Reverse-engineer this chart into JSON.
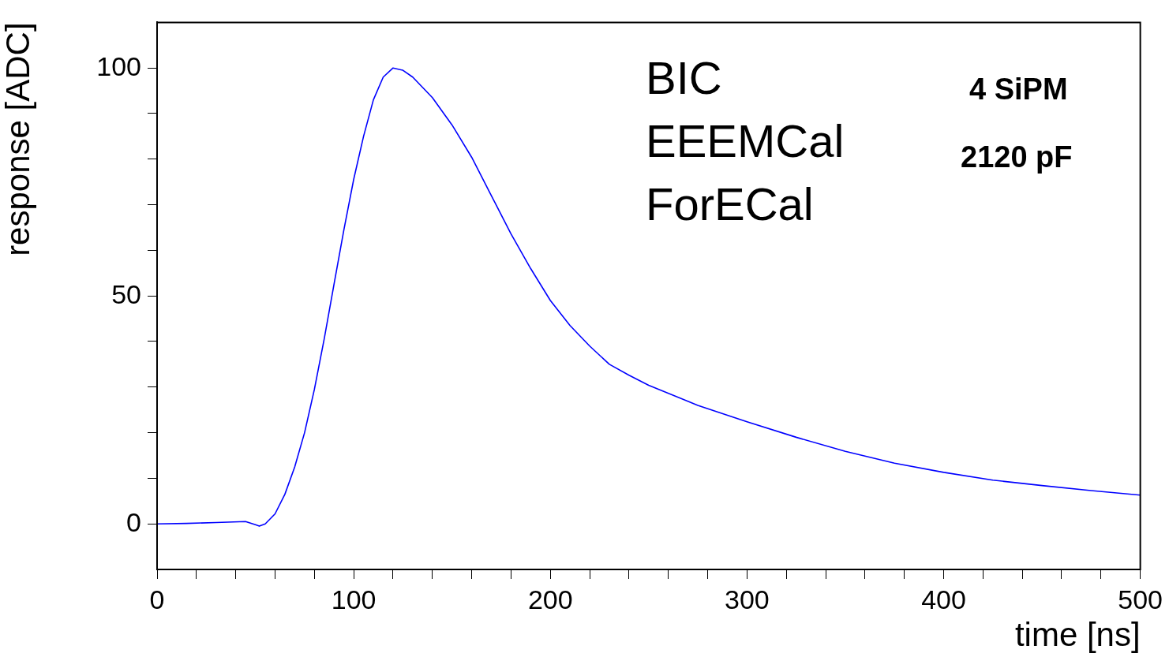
{
  "chart_data": {
    "type": "line",
    "xlabel": "time [ns]",
    "ylabel": "response [ADC]",
    "annotations": [
      "BIC",
      "EEEMCal",
      "ForECal",
      "4 SiPM",
      "2120 pF"
    ],
    "xlim": [
      0,
      500
    ],
    "ylim": [
      -10,
      110
    ],
    "xticks": [
      0,
      {
        "value": 20,
        "label": null
      },
      {
        "value": 40,
        "label": null
      },
      {
        "value": 60,
        "label": null
      },
      {
        "value": 80,
        "label": null
      },
      100,
      {
        "value": 120,
        "label": null
      },
      {
        "value": 140,
        "label": null
      },
      {
        "value": 160,
        "label": null
      },
      {
        "value": 180,
        "label": null
      },
      200,
      {
        "value": 220,
        "label": null
      },
      {
        "value": 240,
        "label": null
      },
      {
        "value": 260,
        "label": null
      },
      {
        "value": 280,
        "label": null
      },
      300,
      {
        "value": 320,
        "label": null
      },
      {
        "value": 340,
        "label": null
      },
      {
        "value": 360,
        "label": null
      },
      {
        "value": 380,
        "label": null
      },
      400,
      {
        "value": 420,
        "label": null
      },
      {
        "value": 440,
        "label": null
      },
      {
        "value": 460,
        "label": null
      },
      {
        "value": 480,
        "label": null
      },
      500
    ],
    "yticks": [
      0,
      {
        "value": 10,
        "label": null
      },
      {
        "value": 20,
        "label": null
      },
      {
        "value": 30,
        "label": null
      },
      {
        "value": 40,
        "label": null
      },
      50,
      {
        "value": 60,
        "label": null
      },
      {
        "value": 70,
        "label": null
      },
      {
        "value": 80,
        "label": null
      },
      {
        "value": 90,
        "label": null
      },
      100
    ],
    "marker": "none",
    "line_style": "solid",
    "series": [
      {
        "color": "#0000ff",
        "x": [
          0,
          15,
          30,
          45,
          50,
          52,
          55,
          60,
          65,
          70,
          75,
          80,
          85,
          90,
          95,
          100,
          105,
          110,
          115,
          120,
          125,
          130,
          140,
          150,
          160,
          170,
          180,
          190,
          200,
          210,
          220,
          230,
          240,
          250,
          275,
          300,
          325,
          350,
          375,
          400,
          425,
          450,
          475,
          500
        ],
        "values": [
          0,
          0.1,
          0.3,
          0.5,
          -0.2,
          -0.5,
          0,
          2.2,
          6.5,
          12.5,
          20,
          29.5,
          40.6,
          52.6,
          64.5,
          75.6,
          85,
          93,
          98,
          100,
          99.5,
          98,
          93.5,
          87.5,
          80.4,
          72,
          63.6,
          56,
          49,
          43.5,
          39,
          35,
          32.6,
          30.4,
          26,
          22.4,
          19,
          15.9,
          13.3,
          11.3,
          9.6,
          8.4,
          7.3,
          6.3
        ]
      }
    ]
  }
}
